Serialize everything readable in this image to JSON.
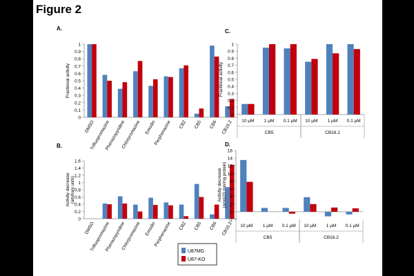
{
  "figure_title": "Figure 2",
  "colors": {
    "u87mg": "#4f81bd",
    "u87ko": "#c0000c"
  },
  "legend": [
    {
      "name": "U87MG",
      "color": "#4f81bd"
    },
    {
      "name": "U87-KO",
      "color": "#c0000c"
    }
  ],
  "chart_data": [
    {
      "panel": "A.",
      "type": "bar",
      "title": "",
      "xlabel": "",
      "ylabel": "Fractional activity",
      "ylim": [
        0,
        1
      ],
      "yticks": [
        "0",
        "0.1",
        "0.2",
        "0.3",
        "0.4",
        "0.5",
        "0.6",
        "0.7",
        "0.8",
        "0.9",
        "1"
      ],
      "categories": [
        "DMSO",
        "Trifluopromazine",
        "Phenazopyridine",
        "Chlorpromazine",
        "Emodin",
        "Perphenazine",
        "CB2",
        "CB5",
        "CB6",
        "CB16.2"
      ],
      "series": [
        {
          "name": "U87MG",
          "values": [
            1.0,
            0.58,
            0.39,
            0.63,
            0.43,
            0.56,
            0.67,
            0.05,
            0.98,
            0.15
          ]
        },
        {
          "name": "U87-KO",
          "values": [
            1.0,
            0.5,
            0.48,
            0.77,
            0.52,
            0.55,
            0.71,
            0.12,
            0.83,
            0.25
          ]
        }
      ]
    },
    {
      "panel": "B.",
      "type": "bar",
      "title": "",
      "xlabel": "",
      "ylabel": "Activity decrease",
      "ylabel2": "(arbitrary units)",
      "ylim": [
        0,
        1.6
      ],
      "yticks": [
        "0",
        "0.2",
        "0.4",
        "0.6",
        "0.8",
        "1",
        "1.2",
        "1.4",
        "1.6"
      ],
      "categories": [
        "DMSO",
        "Trifluopromazine",
        "Phenazopyridine",
        "Chlorpromazine",
        "Emodin",
        "Perphenazine",
        "CB2",
        "CB5",
        "CB6",
        "CB16.2"
      ],
      "series": [
        {
          "name": "U87MG",
          "values": [
            0,
            0.42,
            0.62,
            0.39,
            0.58,
            0.45,
            0.39,
            0.96,
            0.12,
            0.87
          ]
        },
        {
          "name": "U87-KO",
          "values": [
            0,
            0.4,
            0.42,
            0.2,
            0.38,
            0.37,
            0.07,
            0.6,
            0.39,
            1.49
          ]
        }
      ]
    },
    {
      "panel": "C.",
      "type": "bar",
      "title": "",
      "xlabel": "",
      "ylabel": "Fractional activity",
      "ylim": [
        0,
        1
      ],
      "yticks": [
        "0",
        "0.1",
        "0.2",
        "0.3",
        "0.4",
        "0.5",
        "0.6",
        "0.7",
        "0.8",
        "0.9",
        "1"
      ],
      "categories": [
        "10 µM",
        "1 µM",
        "0.1 µM",
        "10 µM",
        "1 µM",
        "0.1 µM"
      ],
      "groups": [
        {
          "label": "CB5",
          "span": 3
        },
        {
          "label": "CB16.2",
          "span": 3
        }
      ],
      "series": [
        {
          "name": "U87MG",
          "values": [
            0.15,
            0.95,
            0.94,
            0.75,
            1.0,
            1.0
          ]
        },
        {
          "name": "U87-KO",
          "values": [
            0.15,
            1.0,
            1.0,
            0.79,
            0.87,
            0.93
          ]
        }
      ]
    },
    {
      "panel": "D.",
      "type": "bar",
      "title": "",
      "xlabel": "",
      "ylabel": "Activity decrease",
      "ylabel2": "(nmol/20 min/mg protein)",
      "ylim": [
        -2,
        16
      ],
      "yticks": [
        "-2",
        "0",
        "2",
        "4",
        "6",
        "8",
        "10",
        "12",
        "14",
        "16"
      ],
      "categories": [
        "10 µM",
        "1 µM",
        "0.1 µM",
        "10 µM",
        "1 µM",
        "0.1 µM"
      ],
      "groups": [
        {
          "label": "CB5",
          "span": 3
        },
        {
          "label": "CB16.2",
          "span": 3
        }
      ],
      "series": [
        {
          "name": "U87MG",
          "values": [
            13.5,
            1.0,
            1.0,
            3.8,
            -1.2,
            -0.7
          ]
        },
        {
          "name": "U87-KO",
          "values": [
            7.8,
            0.0,
            -0.5,
            2.0,
            1.1,
            0.9
          ]
        }
      ]
    }
  ]
}
